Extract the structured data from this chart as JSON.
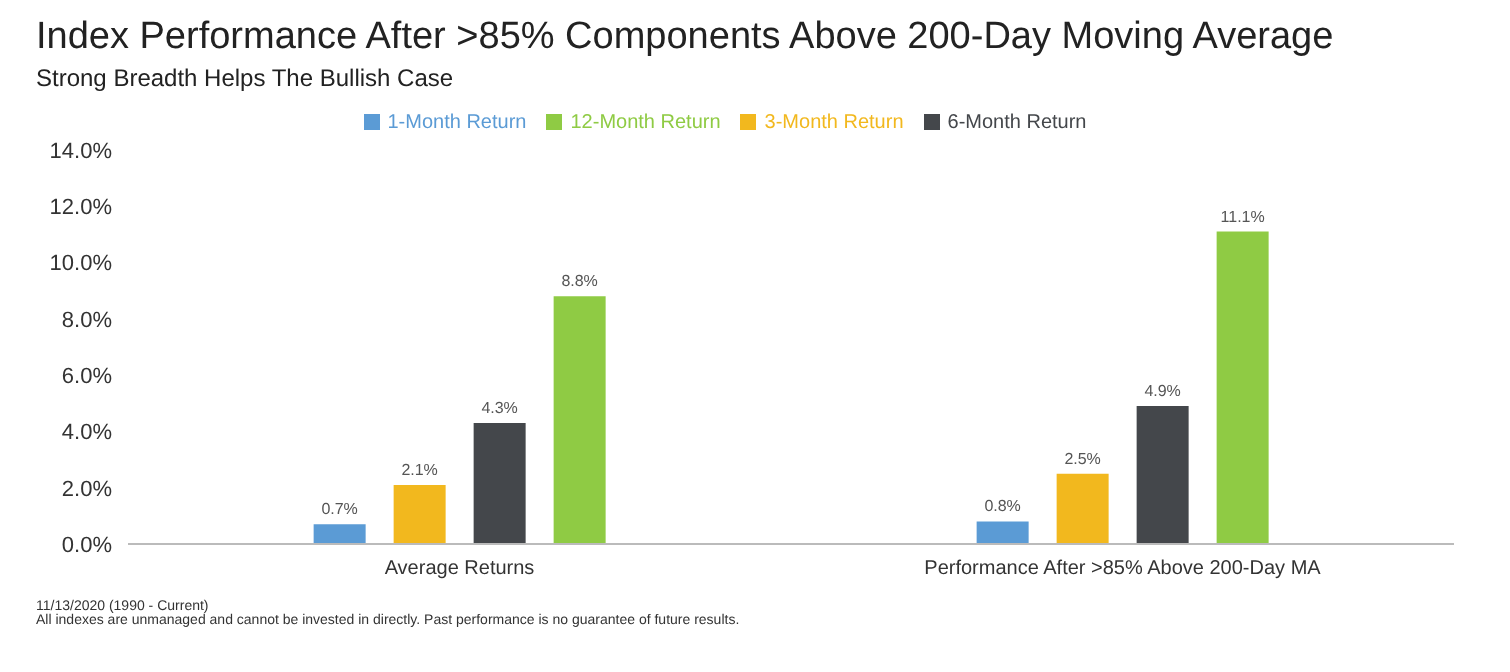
{
  "chart_data": {
    "type": "bar",
    "title": "Index Performance After >85% Components Above 200-Day Moving Average",
    "subtitle": "Strong Breadth Helps The Bullish Case",
    "categories": [
      "Average Returns",
      "Performance After >85% Above 200-Day MA"
    ],
    "series": [
      {
        "name": "1-Month Return",
        "color": "#5b9bd5",
        "values": [
          0.7,
          0.8
        ],
        "value_labels": [
          "0.7%",
          "0.8%"
        ]
      },
      {
        "name": "3-Month Return",
        "color": "#f2b81e",
        "values": [
          2.1,
          2.5
        ],
        "value_labels": [
          "2.1%",
          "2.5%"
        ]
      },
      {
        "name": "6-Month Return",
        "color": "#44474b",
        "values": [
          4.3,
          4.9
        ],
        "value_labels": [
          "4.3%",
          "4.9%"
        ]
      },
      {
        "name": "12-Month Return",
        "color": "#8fcb44",
        "values": [
          8.8,
          11.1
        ],
        "value_labels": [
          "8.8%",
          "11.1%"
        ]
      }
    ],
    "ylim": [
      0,
      14
    ],
    "yticks": [
      {
        "value": 0,
        "label": "0.0%"
      },
      {
        "value": 2,
        "label": "2.0%"
      },
      {
        "value": 4,
        "label": "4.0%"
      },
      {
        "value": 6,
        "label": "6.0%"
      },
      {
        "value": 8,
        "label": "8.0%"
      },
      {
        "value": 10,
        "label": "10.0%"
      },
      {
        "value": 12,
        "label": "12.0%"
      },
      {
        "value": 14,
        "label": "14.0%"
      }
    ],
    "legend": "top",
    "annotations": [
      "11/13/2020 (1990 - Current)",
      "All indexes are unmanaged and cannot be invested in directly. Past performance is no guarantee of future results."
    ]
  }
}
